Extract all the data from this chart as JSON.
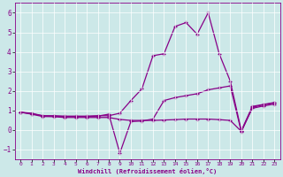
{
  "xlabel": "Windchill (Refroidissement éolien,°C)",
  "background_color": "#cce8e8",
  "grid_color": "#ffffff",
  "line_color": "#880088",
  "xlim": [
    -0.5,
    23.5
  ],
  "ylim": [
    -1.5,
    6.5
  ],
  "xticks": [
    0,
    1,
    2,
    3,
    4,
    5,
    6,
    7,
    8,
    9,
    10,
    11,
    12,
    13,
    14,
    15,
    16,
    17,
    18,
    19,
    20,
    21,
    22,
    23
  ],
  "yticks": [
    -1,
    0,
    1,
    2,
    3,
    4,
    5,
    6
  ],
  "s1": [
    0.9,
    0.85,
    0.72,
    0.72,
    0.7,
    0.7,
    0.7,
    0.72,
    0.72,
    0.85,
    1.5,
    2.1,
    3.8,
    3.9,
    5.3,
    5.5,
    4.9,
    6.0,
    3.9,
    2.5,
    -0.05,
    1.2,
    1.3,
    1.4
  ],
  "s2": [
    0.9,
    0.82,
    0.72,
    0.7,
    0.68,
    0.68,
    0.68,
    0.7,
    0.8,
    -1.2,
    0.42,
    0.45,
    0.55,
    1.5,
    1.65,
    1.75,
    1.85,
    2.05,
    2.15,
    2.25,
    -0.1,
    1.15,
    1.28,
    1.38
  ],
  "s3": [
    0.9,
    0.8,
    0.68,
    0.67,
    0.63,
    0.63,
    0.63,
    0.63,
    0.63,
    0.53,
    0.48,
    0.48,
    0.48,
    0.5,
    0.52,
    0.55,
    0.55,
    0.55,
    0.52,
    0.48,
    -0.08,
    1.1,
    1.22,
    1.32
  ]
}
